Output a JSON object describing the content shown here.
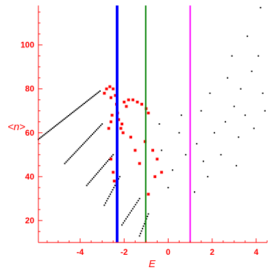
{
  "chart_data": {
    "type": "scatter",
    "title": "",
    "xlabel": "E",
    "ylabel": "<n>",
    "xlim": [
      -5.9,
      4.5
    ],
    "ylim": [
      10,
      118
    ],
    "x_ticks": [
      -4,
      -2,
      0,
      2,
      4
    ],
    "y_ticks": [
      20,
      40,
      60,
      80,
      100
    ],
    "x_tick_labels": [
      "-4",
      "-2",
      "0",
      "2",
      "4"
    ],
    "y_tick_labels": [
      "20",
      "40",
      "60",
      "80",
      "100"
    ],
    "grid": false,
    "legend": "none",
    "colors": {
      "axis": "#ff0000",
      "black_points": "#000000",
      "red_points": "#ff0000",
      "line_blue": "#0000ff",
      "line_green": "#008000",
      "line_magenta": "#ff00ff"
    },
    "vertical_lines": [
      {
        "x": -2.32,
        "color": "#0000ff"
      },
      {
        "x": -1.02,
        "color": "#008000"
      },
      {
        "x": 1.0,
        "color": "#ff00ff"
      }
    ],
    "series": [
      {
        "color": "#000000",
        "marker": "small-dot",
        "branches": [
          {
            "x0": -5.9,
            "y0": 57,
            "x1": -3.1,
            "y1": 79,
            "n": 44
          },
          {
            "x0": -4.7,
            "y0": 46,
            "x1": -3.0,
            "y1": 64,
            "n": 28
          },
          {
            "x0": -3.7,
            "y0": 36,
            "x1": -2.5,
            "y1": 50,
            "n": 20
          },
          {
            "x0": -2.9,
            "y0": 27,
            "x1": -2.2,
            "y1": 40,
            "n": 14
          },
          {
            "x0": -2.1,
            "y0": 18,
            "x1": -1.3,
            "y1": 30,
            "n": 14
          },
          {
            "x0": -1.3,
            "y0": 13,
            "x1": -0.9,
            "y1": 23,
            "n": 10
          }
        ],
        "cloud": [
          {
            "x": 0.2,
            "y": 43
          },
          {
            "x": 0.8,
            "y": 50
          },
          {
            "x": 1.3,
            "y": 55
          },
          {
            "x": 1.6,
            "y": 47
          },
          {
            "x": 2.1,
            "y": 60
          },
          {
            "x": 2.6,
            "y": 65
          },
          {
            "x": 3.0,
            "y": 72
          },
          {
            "x": 3.3,
            "y": 80
          },
          {
            "x": 3.5,
            "y": 68
          },
          {
            "x": 3.8,
            "y": 88
          },
          {
            "x": 4.1,
            "y": 95
          },
          {
            "x": 4.3,
            "y": 78
          },
          {
            "x": 4.2,
            "y": 117
          },
          {
            "x": 3.6,
            "y": 104
          },
          {
            "x": 2.9,
            "y": 95
          },
          {
            "x": 1.8,
            "y": 40
          },
          {
            "x": 0.5,
            "y": 60
          },
          {
            "x": -0.3,
            "y": 52
          },
          {
            "x": 0.0,
            "y": 35
          },
          {
            "x": 1.2,
            "y": 33
          },
          {
            "x": 2.4,
            "y": 50
          },
          {
            "x": 3.2,
            "y": 58
          },
          {
            "x": 3.9,
            "y": 62
          },
          {
            "x": 4.4,
            "y": 70
          },
          {
            "x": 2.7,
            "y": 85
          },
          {
            "x": 1.5,
            "y": 70
          },
          {
            "x": 0.6,
            "y": 68
          },
          {
            "x": 1.9,
            "y": 78
          },
          {
            "x": 3.1,
            "y": 45
          },
          {
            "x": -0.4,
            "y": 64
          }
        ]
      },
      {
        "color": "#ff0000",
        "marker": "dot",
        "points": [
          {
            "x": -2.9,
            "y": 78
          },
          {
            "x": -2.8,
            "y": 80
          },
          {
            "x": -2.65,
            "y": 81
          },
          {
            "x": -2.5,
            "y": 80
          },
          {
            "x": -2.4,
            "y": 77
          },
          {
            "x": -2.35,
            "y": 73
          },
          {
            "x": -2.3,
            "y": 69
          },
          {
            "x": -2.25,
            "y": 66
          },
          {
            "x": -2.15,
            "y": 62
          },
          {
            "x": -2.05,
            "y": 60
          },
          {
            "x": -2.0,
            "y": 74
          },
          {
            "x": -1.8,
            "y": 75
          },
          {
            "x": -1.6,
            "y": 75
          },
          {
            "x": -1.4,
            "y": 74
          },
          {
            "x": -1.2,
            "y": 73
          },
          {
            "x": -1.0,
            "y": 71
          },
          {
            "x": -0.9,
            "y": 69
          },
          {
            "x": -2.55,
            "y": 68
          },
          {
            "x": -2.6,
            "y": 65
          },
          {
            "x": -2.7,
            "y": 62
          },
          {
            "x": -2.6,
            "y": 48
          },
          {
            "x": -2.5,
            "y": 42
          },
          {
            "x": -2.45,
            "y": 38
          },
          {
            "x": -1.7,
            "y": 58
          },
          {
            "x": -1.5,
            "y": 52
          },
          {
            "x": -1.3,
            "y": 46
          },
          {
            "x": -1.05,
            "y": 56
          },
          {
            "x": -0.7,
            "y": 52
          },
          {
            "x": -0.5,
            "y": 48
          },
          {
            "x": -0.3,
            "y": 42
          },
          {
            "x": -0.9,
            "y": 32
          },
          {
            "x": -0.6,
            "y": 40
          },
          {
            "x": -2.6,
            "y": 76
          },
          {
            "x": -2.1,
            "y": 64
          },
          {
            "x": -1.9,
            "y": 72
          }
        ]
      }
    ]
  }
}
